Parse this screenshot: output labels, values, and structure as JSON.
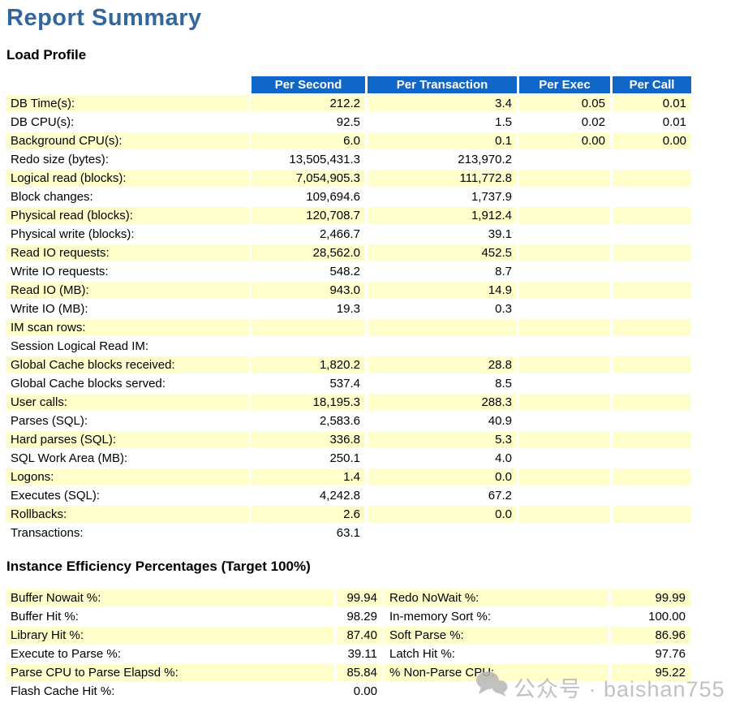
{
  "page": {
    "title": "Report Summary"
  },
  "colors": {
    "header_bg": "#1167c8",
    "row_highlight": "#ffffcc",
    "title_text": "#336699",
    "watermark_text": "#b7b7b7"
  },
  "load_profile": {
    "heading": "Load Profile",
    "columns": [
      "",
      "Per Second",
      "Per Transaction",
      "Per Exec",
      "Per Call"
    ],
    "rows": [
      {
        "label": "DB Time(s):",
        "per_second": "212.2",
        "per_transaction": "3.4",
        "per_exec": "0.05",
        "per_call": "0.01"
      },
      {
        "label": "DB CPU(s):",
        "per_second": "92.5",
        "per_transaction": "1.5",
        "per_exec": "0.02",
        "per_call": "0.01"
      },
      {
        "label": "Background CPU(s):",
        "per_second": "6.0",
        "per_transaction": "0.1",
        "per_exec": "0.00",
        "per_call": "0.00"
      },
      {
        "label": "Redo size (bytes):",
        "per_second": "13,505,431.3",
        "per_transaction": "213,970.2",
        "per_exec": "",
        "per_call": ""
      },
      {
        "label": "Logical read (blocks):",
        "per_second": "7,054,905.3",
        "per_transaction": "111,772.8",
        "per_exec": "",
        "per_call": ""
      },
      {
        "label": "Block changes:",
        "per_second": "109,694.6",
        "per_transaction": "1,737.9",
        "per_exec": "",
        "per_call": ""
      },
      {
        "label": "Physical read (blocks):",
        "per_second": "120,708.7",
        "per_transaction": "1,912.4",
        "per_exec": "",
        "per_call": ""
      },
      {
        "label": "Physical write (blocks):",
        "per_second": "2,466.7",
        "per_transaction": "39.1",
        "per_exec": "",
        "per_call": ""
      },
      {
        "label": "Read IO requests:",
        "per_second": "28,562.0",
        "per_transaction": "452.5",
        "per_exec": "",
        "per_call": ""
      },
      {
        "label": "Write IO requests:",
        "per_second": "548.2",
        "per_transaction": "8.7",
        "per_exec": "",
        "per_call": ""
      },
      {
        "label": "Read IO (MB):",
        "per_second": "943.0",
        "per_transaction": "14.9",
        "per_exec": "",
        "per_call": ""
      },
      {
        "label": "Write IO (MB):",
        "per_second": "19.3",
        "per_transaction": "0.3",
        "per_exec": "",
        "per_call": ""
      },
      {
        "label": "IM scan rows:",
        "per_second": "",
        "per_transaction": "",
        "per_exec": "",
        "per_call": ""
      },
      {
        "label": "Session Logical Read IM:",
        "per_second": "",
        "per_transaction": "",
        "per_exec": "",
        "per_call": ""
      },
      {
        "label": "Global Cache blocks received:",
        "per_second": "1,820.2",
        "per_transaction": "28.8",
        "per_exec": "",
        "per_call": ""
      },
      {
        "label": "Global Cache blocks served:",
        "per_second": "537.4",
        "per_transaction": "8.5",
        "per_exec": "",
        "per_call": ""
      },
      {
        "label": "User calls:",
        "per_second": "18,195.3",
        "per_transaction": "288.3",
        "per_exec": "",
        "per_call": ""
      },
      {
        "label": "Parses (SQL):",
        "per_second": "2,583.6",
        "per_transaction": "40.9",
        "per_exec": "",
        "per_call": ""
      },
      {
        "label": "Hard parses (SQL):",
        "per_second": "336.8",
        "per_transaction": "5.3",
        "per_exec": "",
        "per_call": ""
      },
      {
        "label": "SQL Work Area (MB):",
        "per_second": "250.1",
        "per_transaction": "4.0",
        "per_exec": "",
        "per_call": ""
      },
      {
        "label": "Logons:",
        "per_second": "1.4",
        "per_transaction": "0.0",
        "per_exec": "",
        "per_call": ""
      },
      {
        "label": "Executes (SQL):",
        "per_second": "4,242.8",
        "per_transaction": "67.2",
        "per_exec": "",
        "per_call": ""
      },
      {
        "label": "Rollbacks:",
        "per_second": "2.6",
        "per_transaction": "0.0",
        "per_exec": "",
        "per_call": ""
      },
      {
        "label": "Transactions:",
        "per_second": "63.1",
        "per_transaction": "",
        "per_exec": "",
        "per_call": ""
      }
    ]
  },
  "instance_efficiency": {
    "heading": "Instance Efficiency Percentages (Target 100%)",
    "rows": [
      {
        "label1": "Buffer Nowait %:",
        "value1": "99.94",
        "label2": "Redo NoWait %:",
        "value2": "99.99"
      },
      {
        "label1": "Buffer Hit %:",
        "value1": "98.29",
        "label2": "In-memory Sort %:",
        "value2": "100.00"
      },
      {
        "label1": "Library Hit %:",
        "value1": "87.40",
        "label2": "Soft Parse %:",
        "value2": "86.96"
      },
      {
        "label1": "Execute to Parse %:",
        "value1": "39.11",
        "label2": "Latch Hit %:",
        "value2": "97.76"
      },
      {
        "label1": "Parse CPU to Parse Elapsd %:",
        "value1": "85.84",
        "label2": "% Non-Parse CPU:",
        "value2": "95.22"
      },
      {
        "label1": "Flash Cache Hit %:",
        "value1": "0.00",
        "label2": "",
        "value2": ""
      }
    ]
  },
  "watermark": {
    "text": "公众号 · baishan755"
  }
}
